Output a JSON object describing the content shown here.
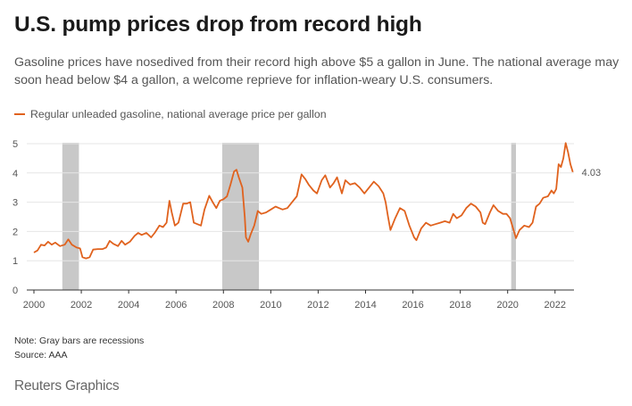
{
  "header": {
    "title": "U.S. pump prices drop from record high",
    "subtitle": "Gasoline prices have nosedived from their record high above $5 a gallon in June. The national average may soon head below $4 a gallon, a welcome reprieve for inflation-weary U.S. consumers."
  },
  "legend": {
    "label": "Regular unleaded gasoline, national average price per gallon"
  },
  "footer": {
    "note": "Note: Gray bars are recessions",
    "source": "Source: AAA",
    "brand": "Reuters Graphics"
  },
  "colors": {
    "line": "#e0621e",
    "recession": "#c8c8c8",
    "grid": "#e6e6e6",
    "axis": "#333333"
  },
  "chart_data": {
    "type": "line",
    "title": "U.S. pump prices drop from record high",
    "xlabel": "",
    "ylabel": "",
    "xlim": [
      2000,
      2022.8
    ],
    "ylim": [
      0,
      5
    ],
    "yticks": [
      0,
      1,
      2,
      3,
      4,
      5
    ],
    "xticks": [
      2000,
      2002,
      2004,
      2006,
      2008,
      2010,
      2012,
      2014,
      2016,
      2018,
      2020,
      2022
    ],
    "grid": "horizontal",
    "recessions": [
      [
        2001.2,
        2001.9
      ],
      [
        2007.95,
        2009.5
      ],
      [
        2020.15,
        2020.35
      ]
    ],
    "end_label": "4.03",
    "series": [
      {
        "name": "Regular unleaded gasoline, national average price per gallon",
        "points": [
          [
            2000.0,
            1.28
          ],
          [
            2000.15,
            1.35
          ],
          [
            2000.3,
            1.55
          ],
          [
            2000.45,
            1.52
          ],
          [
            2000.6,
            1.65
          ],
          [
            2000.75,
            1.55
          ],
          [
            2000.9,
            1.62
          ],
          [
            2001.1,
            1.5
          ],
          [
            2001.3,
            1.55
          ],
          [
            2001.45,
            1.73
          ],
          [
            2001.6,
            1.55
          ],
          [
            2001.8,
            1.45
          ],
          [
            2001.95,
            1.42
          ],
          [
            2002.05,
            1.12
          ],
          [
            2002.2,
            1.08
          ],
          [
            2002.35,
            1.12
          ],
          [
            2002.5,
            1.38
          ],
          [
            2002.7,
            1.4
          ],
          [
            2002.9,
            1.4
          ],
          [
            2003.05,
            1.45
          ],
          [
            2003.2,
            1.68
          ],
          [
            2003.35,
            1.58
          ],
          [
            2003.55,
            1.5
          ],
          [
            2003.7,
            1.68
          ],
          [
            2003.85,
            1.55
          ],
          [
            2004.05,
            1.65
          ],
          [
            2004.25,
            1.85
          ],
          [
            2004.4,
            1.95
          ],
          [
            2004.55,
            1.88
          ],
          [
            2004.75,
            1.95
          ],
          [
            2004.95,
            1.8
          ],
          [
            2005.1,
            1.95
          ],
          [
            2005.3,
            2.2
          ],
          [
            2005.45,
            2.15
          ],
          [
            2005.6,
            2.3
          ],
          [
            2005.72,
            3.05
          ],
          [
            2005.82,
            2.65
          ],
          [
            2005.95,
            2.2
          ],
          [
            2006.1,
            2.3
          ],
          [
            2006.3,
            2.95
          ],
          [
            2006.45,
            2.95
          ],
          [
            2006.6,
            3.0
          ],
          [
            2006.75,
            2.3
          ],
          [
            2006.9,
            2.25
          ],
          [
            2007.05,
            2.2
          ],
          [
            2007.2,
            2.75
          ],
          [
            2007.4,
            3.22
          ],
          [
            2007.55,
            3.0
          ],
          [
            2007.7,
            2.8
          ],
          [
            2007.85,
            3.05
          ],
          [
            2008.0,
            3.1
          ],
          [
            2008.15,
            3.2
          ],
          [
            2008.3,
            3.6
          ],
          [
            2008.45,
            4.05
          ],
          [
            2008.55,
            4.11
          ],
          [
            2008.65,
            3.85
          ],
          [
            2008.8,
            3.5
          ],
          [
            2008.9,
            2.5
          ],
          [
            2008.95,
            1.8
          ],
          [
            2009.05,
            1.65
          ],
          [
            2009.15,
            1.9
          ],
          [
            2009.3,
            2.2
          ],
          [
            2009.45,
            2.7
          ],
          [
            2009.6,
            2.6
          ],
          [
            2009.8,
            2.65
          ],
          [
            2010.0,
            2.75
          ],
          [
            2010.2,
            2.85
          ],
          [
            2010.35,
            2.8
          ],
          [
            2010.5,
            2.75
          ],
          [
            2010.7,
            2.8
          ],
          [
            2010.9,
            3.0
          ],
          [
            2011.1,
            3.2
          ],
          [
            2011.3,
            3.95
          ],
          [
            2011.45,
            3.8
          ],
          [
            2011.6,
            3.6
          ],
          [
            2011.8,
            3.4
          ],
          [
            2011.95,
            3.3
          ],
          [
            2012.15,
            3.75
          ],
          [
            2012.3,
            3.92
          ],
          [
            2012.5,
            3.5
          ],
          [
            2012.65,
            3.65
          ],
          [
            2012.8,
            3.85
          ],
          [
            2013.0,
            3.3
          ],
          [
            2013.15,
            3.75
          ],
          [
            2013.35,
            3.6
          ],
          [
            2013.55,
            3.65
          ],
          [
            2013.75,
            3.5
          ],
          [
            2013.95,
            3.3
          ],
          [
            2014.15,
            3.5
          ],
          [
            2014.35,
            3.7
          ],
          [
            2014.55,
            3.55
          ],
          [
            2014.75,
            3.3
          ],
          [
            2014.85,
            3.0
          ],
          [
            2014.95,
            2.5
          ],
          [
            2015.05,
            2.05
          ],
          [
            2015.25,
            2.45
          ],
          [
            2015.45,
            2.8
          ],
          [
            2015.65,
            2.7
          ],
          [
            2015.85,
            2.2
          ],
          [
            2016.05,
            1.8
          ],
          [
            2016.15,
            1.7
          ],
          [
            2016.35,
            2.1
          ],
          [
            2016.55,
            2.3
          ],
          [
            2016.75,
            2.2
          ],
          [
            2016.95,
            2.25
          ],
          [
            2017.15,
            2.3
          ],
          [
            2017.35,
            2.35
          ],
          [
            2017.55,
            2.3
          ],
          [
            2017.7,
            2.6
          ],
          [
            2017.85,
            2.45
          ],
          [
            2018.05,
            2.55
          ],
          [
            2018.25,
            2.8
          ],
          [
            2018.45,
            2.95
          ],
          [
            2018.65,
            2.85
          ],
          [
            2018.85,
            2.65
          ],
          [
            2018.95,
            2.3
          ],
          [
            2019.05,
            2.25
          ],
          [
            2019.25,
            2.65
          ],
          [
            2019.4,
            2.9
          ],
          [
            2019.6,
            2.7
          ],
          [
            2019.8,
            2.6
          ],
          [
            2019.95,
            2.6
          ],
          [
            2020.1,
            2.45
          ],
          [
            2020.25,
            2.05
          ],
          [
            2020.35,
            1.77
          ],
          [
            2020.5,
            2.05
          ],
          [
            2020.7,
            2.2
          ],
          [
            2020.9,
            2.15
          ],
          [
            2021.05,
            2.3
          ],
          [
            2021.2,
            2.85
          ],
          [
            2021.35,
            2.95
          ],
          [
            2021.5,
            3.15
          ],
          [
            2021.7,
            3.2
          ],
          [
            2021.85,
            3.4
          ],
          [
            2021.95,
            3.3
          ],
          [
            2022.05,
            3.45
          ],
          [
            2022.15,
            4.3
          ],
          [
            2022.25,
            4.2
          ],
          [
            2022.35,
            4.5
          ],
          [
            2022.45,
            5.02
          ],
          [
            2022.55,
            4.7
          ],
          [
            2022.65,
            4.3
          ],
          [
            2022.75,
            4.03
          ]
        ]
      }
    ]
  }
}
